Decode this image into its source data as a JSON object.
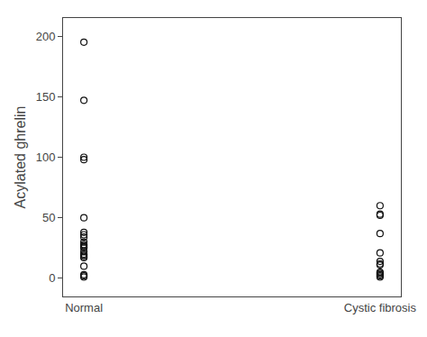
{
  "chart_data": {
    "type": "strip",
    "categories": [
      "Normal",
      "Cystic fibrosis"
    ],
    "values": [
      [
        195,
        147,
        100,
        98,
        50,
        38,
        36,
        34,
        30,
        28,
        27,
        26,
        25,
        22,
        20,
        19,
        18,
        17,
        10,
        3,
        2,
        1
      ],
      [
        60,
        53,
        52,
        37,
        21,
        14,
        12,
        11,
        5,
        4,
        3,
        2,
        1
      ]
    ],
    "y_label": "Acylated ghrelin",
    "ylim": [
      -15,
      215
    ],
    "yticks": [
      0,
      50,
      100,
      150,
      200
    ],
    "color": "#111111",
    "marker": "circle-open",
    "grid": false
  }
}
